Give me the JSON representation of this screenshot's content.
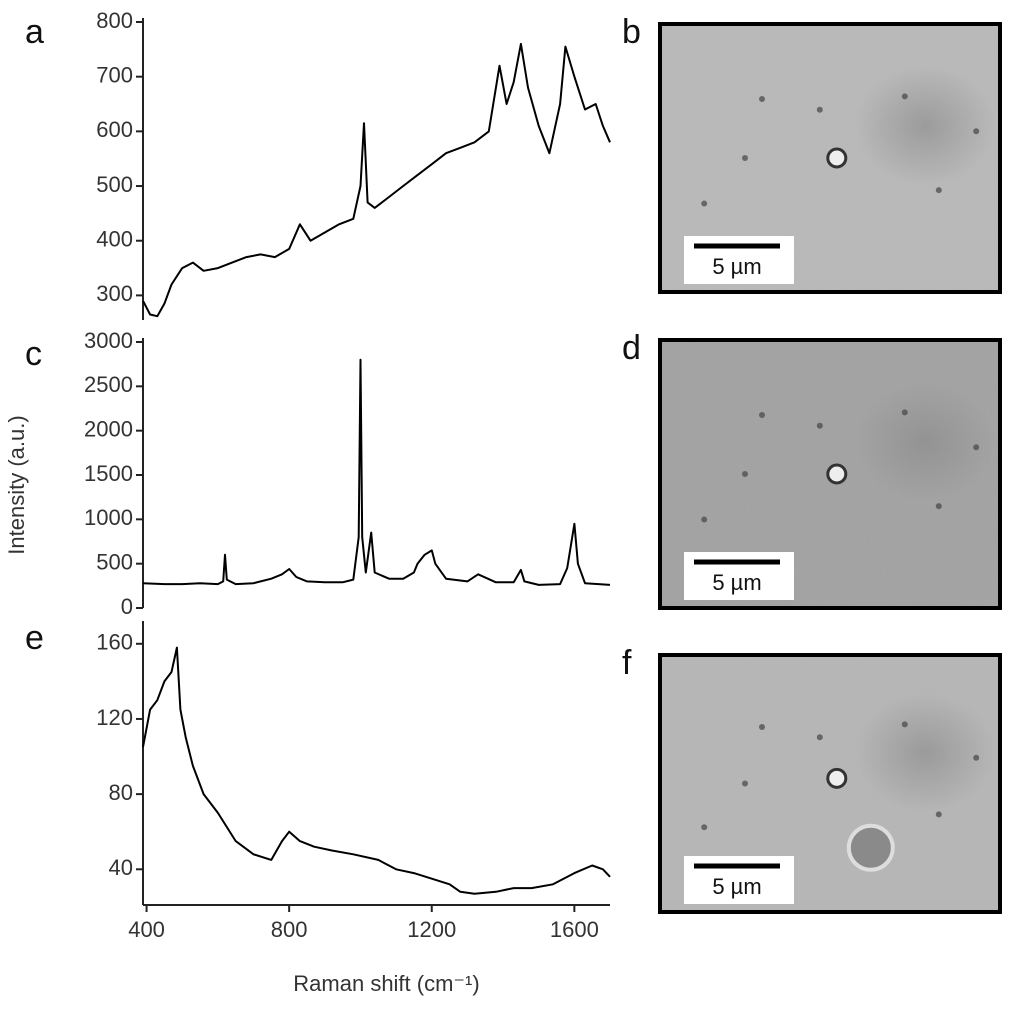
{
  "chart_data": [
    {
      "type": "line",
      "label": "a",
      "color": "#000",
      "xlim": [
        390,
        1700
      ],
      "ylim": [
        255,
        800
      ],
      "yticks": [
        300,
        400,
        500,
        600,
        700,
        800
      ],
      "x": [
        390,
        410,
        430,
        450,
        470,
        500,
        530,
        560,
        600,
        640,
        680,
        720,
        760,
        800,
        830,
        860,
        900,
        940,
        980,
        1000,
        1010,
        1020,
        1040,
        1080,
        1120,
        1160,
        1200,
        1240,
        1280,
        1320,
        1360,
        1390,
        1410,
        1430,
        1450,
        1470,
        1500,
        1530,
        1560,
        1575,
        1600,
        1630,
        1660,
        1680,
        1700
      ],
      "values": [
        290,
        265,
        262,
        285,
        320,
        350,
        360,
        345,
        350,
        360,
        370,
        375,
        370,
        385,
        430,
        400,
        415,
        430,
        440,
        500,
        615,
        470,
        460,
        480,
        500,
        520,
        540,
        560,
        570,
        580,
        600,
        720,
        650,
        690,
        760,
        680,
        610,
        560,
        650,
        755,
        700,
        640,
        650,
        610,
        580
      ]
    },
    {
      "type": "line",
      "label": "c",
      "color": "#000",
      "y_label": "Intensity (a.u.)",
      "xlim": [
        390,
        1700
      ],
      "ylim": [
        0,
        3000
      ],
      "yticks": [
        0,
        500,
        1000,
        1500,
        2000,
        2500,
        3000
      ],
      "x": [
        390,
        450,
        500,
        550,
        600,
        615,
        620,
        625,
        650,
        700,
        750,
        780,
        800,
        820,
        850,
        900,
        950,
        980,
        995,
        1000,
        1005,
        1015,
        1030,
        1040,
        1080,
        1120,
        1150,
        1160,
        1180,
        1200,
        1210,
        1240,
        1300,
        1330,
        1380,
        1430,
        1450,
        1460,
        1500,
        1560,
        1580,
        1600,
        1610,
        1630,
        1700
      ],
      "values": [
        280,
        270,
        270,
        280,
        270,
        300,
        600,
        320,
        270,
        280,
        330,
        380,
        440,
        350,
        300,
        290,
        290,
        320,
        800,
        2800,
        800,
        400,
        850,
        400,
        330,
        330,
        400,
        500,
        600,
        650,
        500,
        330,
        300,
        380,
        290,
        290,
        430,
        300,
        260,
        270,
        450,
        950,
        500,
        280,
        260
      ]
    },
    {
      "type": "line",
      "label": "e",
      "color": "#000",
      "x_label": "Raman shift (cm⁻¹)",
      "xlim": [
        390,
        1700
      ],
      "xticks": [
        400,
        800,
        1200,
        1600
      ],
      "ylim": [
        21,
        170
      ],
      "yticks": [
        40,
        80,
        120,
        160
      ],
      "x": [
        390,
        410,
        430,
        450,
        470,
        485,
        495,
        510,
        530,
        560,
        600,
        650,
        700,
        750,
        780,
        800,
        830,
        870,
        920,
        980,
        1050,
        1100,
        1150,
        1200,
        1250,
        1280,
        1320,
        1380,
        1430,
        1480,
        1540,
        1600,
        1650,
        1680,
        1700
      ],
      "values": [
        105,
        125,
        130,
        140,
        145,
        158,
        125,
        110,
        95,
        80,
        70,
        55,
        48,
        45,
        55,
        60,
        55,
        52,
        50,
        48,
        45,
        40,
        38,
        35,
        32,
        28,
        27,
        28,
        30,
        30,
        32,
        38,
        42,
        40,
        36
      ]
    }
  ],
  "images": [
    {
      "label": "b",
      "scale_bar": "5 µm"
    },
    {
      "label": "d",
      "scale_bar": "5 µm"
    },
    {
      "label": "f",
      "scale_bar": "5 µm"
    }
  ]
}
